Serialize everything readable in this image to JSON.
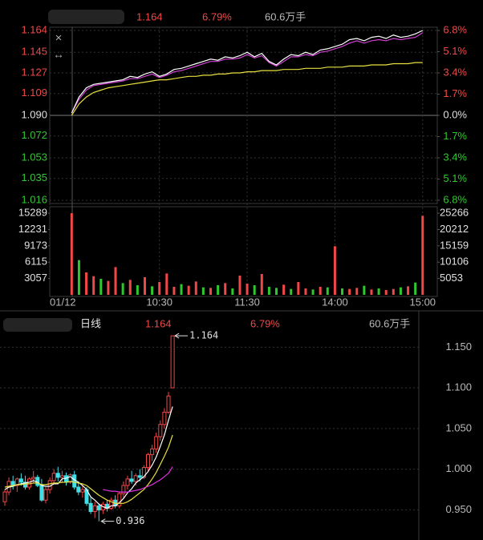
{
  "chart_data": [
    {
      "type": "line",
      "header": [
        "1.164",
        "6.79%",
        "60.6万手"
      ],
      "ylim": [
        1.016,
        1.164
      ],
      "yticks": [
        1.164,
        1.145,
        1.127,
        1.109,
        {
          "value": 1.09,
          "label": "1.090"
        },
        1.072,
        1.053,
        1.035,
        1.016
      ],
      "y2lim": [
        -6.8,
        6.8
      ],
      "y2ticks": [
        {
          "value": 6.8,
          "label": "6.8%"
        },
        {
          "value": 5.1,
          "label": "5.1%"
        },
        {
          "value": 3.4,
          "label": "3.4%"
        },
        {
          "value": 1.7,
          "label": "1.7%"
        },
        {
          "value": 0,
          "label": "0.0%"
        },
        {
          "value": -1.7,
          "label": "1.7%"
        },
        {
          "value": -3.4,
          "label": "3.4%"
        },
        {
          "value": -5.1,
          "label": "5.1%"
        },
        {
          "value": -6.8,
          "label": "6.8%"
        }
      ],
      "xlim": [
        -3,
        50
      ],
      "grid": true,
      "series": [
        {
          "color": "#ffffff",
          "values": [
            1.092,
            1.106,
            1.114,
            1.117,
            1.118,
            1.119,
            1.12,
            1.121,
            1.124,
            1.123,
            1.126,
            1.128,
            1.124,
            1.126,
            1.13,
            1.131,
            1.133,
            1.135,
            1.137,
            1.139,
            1.138,
            1.141,
            1.14,
            1.142,
            1.145,
            1.141,
            1.144,
            1.137,
            1.134,
            1.139,
            1.143,
            1.142,
            1.145,
            1.143,
            1.147,
            1.148,
            1.15,
            1.152,
            1.156,
            1.157,
            1.155,
            1.158,
            1.159,
            1.157,
            1.16,
            1.158,
            1.159,
            1.161,
            1.164
          ]
        },
        {
          "color": "#d040d0",
          "values": [
            1.092,
            1.104,
            1.112,
            1.116,
            1.117,
            1.118,
            1.119,
            1.12,
            1.122,
            1.122,
            1.124,
            1.126,
            1.123,
            1.125,
            1.128,
            1.129,
            1.131,
            1.133,
            1.135,
            1.137,
            1.137,
            1.139,
            1.139,
            1.14,
            1.143,
            1.14,
            1.142,
            1.136,
            1.133,
            1.137,
            1.141,
            1.141,
            1.143,
            1.142,
            1.145,
            1.146,
            1.148,
            1.15,
            1.153,
            1.155,
            1.153,
            1.155,
            1.156,
            1.155,
            1.157,
            1.156,
            1.157,
            1.158,
            1.162
          ]
        },
        {
          "color": "#e8e040",
          "values": [
            1.09,
            1.1,
            1.106,
            1.11,
            1.112,
            1.114,
            1.115,
            1.116,
            1.117,
            1.118,
            1.119,
            1.12,
            1.121,
            1.121,
            1.122,
            1.123,
            1.124,
            1.124,
            1.125,
            1.125,
            1.126,
            1.126,
            1.127,
            1.127,
            1.128,
            1.128,
            1.129,
            1.129,
            1.129,
            1.13,
            1.13,
            1.13,
            1.131,
            1.131,
            1.131,
            1.132,
            1.132,
            1.132,
            1.133,
            1.133,
            1.133,
            1.134,
            1.134,
            1.134,
            1.135,
            1.135,
            1.135,
            1.136,
            1.136
          ]
        }
      ]
    },
    {
      "type": "bar",
      "ylim": [
        0,
        15900
      ],
      "yticks": [
        15289,
        12231,
        9173,
        6115,
        3057
      ],
      "y2lim": [
        0,
        26276
      ],
      "y2ticks": [
        25266,
        20212,
        15159,
        10106,
        5053
      ],
      "xlim": [
        -3,
        50
      ],
      "xticks": [
        {
          "value": -3,
          "label": "01/12"
        },
        {
          "value": 12,
          "label": "10:30"
        },
        {
          "value": 24,
          "label": "11:30"
        },
        {
          "value": 36,
          "label": "14:00"
        },
        {
          "value": 48,
          "label": "15:00"
        }
      ],
      "values": [
        15289,
        6500,
        4200,
        3500,
        3000,
        2600,
        5200,
        2200,
        2800,
        1800,
        3300,
        1600,
        2400,
        4000,
        1500,
        2000,
        1700,
        2500,
        1400,
        1300,
        1800,
        2200,
        1200,
        3600,
        2100,
        1800,
        3900,
        1500,
        1300,
        1900,
        1100,
        2400,
        1200,
        1000,
        1500,
        1400,
        9100,
        1200,
        1100,
        1300,
        1700,
        1000,
        1200,
        900,
        1100,
        1400,
        1600,
        2300,
        14800
      ],
      "up": [
        true,
        false,
        true,
        true,
        false,
        true,
        true,
        false,
        true,
        false,
        true,
        false,
        true,
        true,
        true,
        false,
        true,
        true,
        false,
        true,
        false,
        true,
        false,
        true,
        true,
        false,
        true,
        false,
        false,
        true,
        false,
        true,
        true,
        false,
        true,
        false,
        true,
        false,
        true,
        true,
        false,
        true,
        false,
        true,
        true,
        false,
        true,
        false,
        true
      ],
      "up_color": "#f04848",
      "down_color": "#2ec82e"
    },
    {
      "type": "candlestick",
      "title": "日线",
      "header": [
        "1.164",
        "6.79%",
        "60.6万手"
      ],
      "ylim": [
        0.913,
        1.171
      ],
      "yticks": [
        {
          "value": 1.15,
          "label": "1.150"
        },
        {
          "value": 1.1,
          "label": "1.100"
        },
        {
          "value": 1.05,
          "label": "1.050"
        },
        {
          "value": 1,
          "label": "1.000"
        },
        {
          "value": 0.95,
          "label": "0.950"
        }
      ],
      "grid": true,
      "open": [
        0.96,
        0.972,
        0.985,
        0.98,
        0.988,
        0.984,
        0.978,
        0.988,
        0.99,
        0.98,
        0.962,
        0.975,
        0.986,
        0.995,
        0.99,
        0.992,
        0.984,
        0.993,
        0.978,
        0.972,
        0.975,
        0.958,
        0.948,
        0.955,
        0.95,
        0.957,
        0.952,
        0.962,
        0.955,
        0.97,
        0.98,
        0.988,
        0.985,
        0.992,
        0.99,
        1.002,
        1.018,
        1.025,
        1.04,
        1.055,
        1.07,
        1.1
      ],
      "high": [
        0.975,
        0.99,
        0.992,
        0.99,
        0.995,
        0.992,
        0.99,
        0.998,
        0.993,
        0.988,
        0.978,
        0.99,
        1.0,
        1.003,
        0.998,
        0.996,
        0.995,
        0.998,
        0.985,
        0.98,
        0.978,
        0.965,
        0.96,
        0.958,
        0.96,
        0.962,
        0.965,
        0.968,
        0.972,
        0.985,
        0.992,
        0.998,
        0.995,
        1.0,
        1.005,
        1.02,
        1.03,
        1.045,
        1.06,
        1.075,
        1.095,
        1.164
      ],
      "low": [
        0.955,
        0.968,
        0.975,
        0.972,
        0.98,
        0.975,
        0.975,
        0.983,
        0.978,
        0.96,
        0.958,
        0.97,
        0.982,
        0.985,
        0.983,
        0.98,
        0.982,
        0.975,
        0.968,
        0.965,
        0.955,
        0.945,
        0.94,
        0.936,
        0.945,
        0.948,
        0.95,
        0.952,
        0.952,
        0.965,
        0.975,
        0.982,
        0.98,
        0.985,
        0.988,
        0.998,
        1.01,
        1.02,
        1.035,
        1.05,
        1.068,
        1.1
      ],
      "close": [
        0.972,
        0.985,
        0.98,
        0.988,
        0.984,
        0.978,
        0.988,
        0.99,
        0.98,
        0.962,
        0.975,
        0.986,
        0.995,
        0.99,
        0.992,
        0.984,
        0.993,
        0.978,
        0.972,
        0.975,
        0.958,
        0.948,
        0.955,
        0.95,
        0.957,
        0.952,
        0.962,
        0.955,
        0.97,
        0.98,
        0.988,
        0.985,
        0.992,
        0.99,
        1.002,
        1.018,
        1.025,
        1.04,
        1.055,
        1.07,
        1.09,
        1.164
      ],
      "up_color": "#f04848",
      "down_color": "#3ee0e8",
      "series": [
        {
          "color": "#ffffff",
          "values": [
            0.975,
            0.978,
            0.979,
            0.981,
            0.982,
            0.983,
            0.984,
            0.986,
            0.984,
            0.98,
            0.979,
            0.979,
            0.982,
            0.982,
            0.988,
            0.989,
            0.991,
            0.987,
            0.984,
            0.98,
            0.975,
            0.966,
            0.962,
            0.957,
            0.954,
            0.952,
            0.955,
            0.955,
            0.959,
            0.964,
            0.971,
            0.976,
            0.983,
            0.987,
            0.991,
            0.997,
            1.005,
            1.015,
            1.028,
            1.042,
            1.06,
            1.077
          ]
        },
        {
          "color": "#e8e040",
          "values": [
            0.978,
            0.979,
            0.98,
            0.981,
            0.981,
            0.982,
            0.982,
            0.983,
            0.983,
            0.981,
            0.981,
            0.982,
            0.983,
            0.983,
            0.984,
            0.984,
            0.985,
            0.984,
            0.983,
            0.982,
            0.98,
            0.976,
            0.972,
            0.968,
            0.965,
            0.962,
            0.96,
            0.958,
            0.958,
            0.958,
            0.96,
            0.963,
            0.967,
            0.971,
            0.975,
            0.981,
            0.988,
            0.996,
            1.006,
            1.016,
            1.027,
            1.042
          ]
        },
        {
          "color": "#e030e0",
          "values": [
            null,
            null,
            null,
            null,
            null,
            null,
            null,
            null,
            null,
            null,
            null,
            null,
            null,
            null,
            null,
            null,
            null,
            null,
            null,
            null,
            null,
            null,
            null,
            null,
            0.975,
            0.974,
            0.973,
            0.973,
            0.972,
            0.972,
            0.972,
            0.973,
            0.974,
            0.975,
            0.977,
            0.979,
            0.981,
            0.984,
            0.987,
            0.991,
            0.995,
            1.003
          ]
        }
      ],
      "annotations": [
        {
          "value": 1.164,
          "label": "1.164"
        },
        {
          "value": 0.936,
          "label": "0.936"
        }
      ]
    }
  ]
}
